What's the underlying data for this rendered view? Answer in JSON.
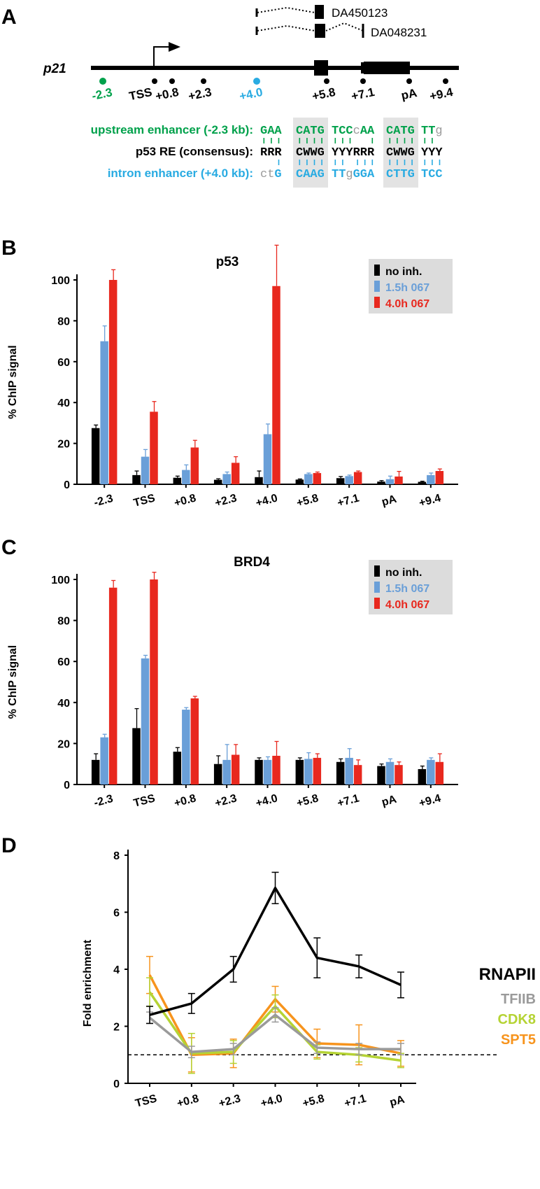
{
  "colors": {
    "black": "#000000",
    "blue": "#6a9fd8",
    "red": "#e8281e",
    "green": "#00a14b",
    "cyan": "#29abe2",
    "gray": "#9a9a9a",
    "lime": "#b5d334",
    "orange": "#f7941d",
    "legend_bg": "#dcdcdc",
    "motif_bg": "#e3e3e3"
  },
  "panel_a": {
    "letter": "A",
    "gene_name": "p21",
    "transcripts": [
      "DA450123",
      "DA048231"
    ],
    "tss_label": "TSS",
    "sites": [
      {
        "label": "-2.3",
        "color": "green"
      },
      {
        "label": "TSS",
        "color": "black"
      },
      {
        "label": "+0.8",
        "color": "black"
      },
      {
        "label": "+2.3",
        "color": "black"
      },
      {
        "label": "+4.0",
        "color": "cyan"
      },
      {
        "label": "+5.8",
        "color": "black"
      },
      {
        "label": "+7.1",
        "color": "black"
      },
      {
        "label": "pA",
        "color": "black"
      },
      {
        "label": "+9.4",
        "color": "black"
      }
    ],
    "motif_rows": [
      {
        "label": "upstream enhancer (-2.3 kb):",
        "color": "green",
        "groups": [
          [
            "GAA"
          ],
          [
            "CATG"
          ],
          [
            "TCC",
            "c",
            "AA"
          ],
          [
            "CATG"
          ],
          [
            "TT",
            "g"
          ]
        ]
      },
      {
        "label": "p53 RE (consensus):",
        "color": "black",
        "groups": [
          [
            "RRR"
          ],
          [
            "CWWG"
          ],
          [
            "YYYRRR"
          ],
          [
            "CWWG"
          ],
          [
            "YYY"
          ]
        ]
      },
      {
        "label": "intron enhancer (+4.0 kb):",
        "color": "cyan",
        "groups": [
          [
            "ct",
            "G"
          ],
          [
            "CAAG"
          ],
          [
            "TT",
            "g",
            "GGA"
          ],
          [
            "CTTG"
          ],
          [
            "TCC"
          ]
        ]
      }
    ]
  },
  "chart_data": [
    {
      "panel": "B",
      "type": "bar",
      "title": "p53",
      "ylabel": "% ChIP signal",
      "xlabel": "",
      "ylim": [
        0,
        100
      ],
      "yticks": [
        0,
        20,
        40,
        60,
        80,
        100
      ],
      "categories": [
        "-2.3",
        "TSS",
        "+0.8",
        "+2.3",
        "+4.0",
        "+5.8",
        "+7.1",
        "pA",
        "+9.4"
      ],
      "series": [
        {
          "name": "no inh.",
          "color": "black",
          "values": [
            27.5,
            4.5,
            3.2,
            2.2,
            3.5,
            2.3,
            3.0,
            1.3,
            1.2
          ],
          "errors": [
            1.5,
            2,
            0.8,
            0.5,
            3,
            0.3,
            0.8,
            0.5,
            0.3
          ]
        },
        {
          "name": "1.5h 067",
          "color": "blue",
          "values": [
            70,
            13.5,
            7,
            5,
            24.5,
            5,
            4,
            2.5,
            4.5
          ],
          "errors": [
            7.5,
            3.5,
            2.5,
            1,
            5,
            0.5,
            0.5,
            1.5,
            1
          ]
        },
        {
          "name": "4.0h 067",
          "color": "red",
          "values": [
            100,
            35.5,
            18,
            10.5,
            97,
            5.5,
            6,
            3.8,
            6.5
          ],
          "errors": [
            5,
            5,
            3.5,
            3,
            20,
            0.5,
            0.5,
            2.5,
            1
          ]
        }
      ],
      "legend": {
        "position": "top-right",
        "labels": [
          "no inh.",
          "1.5h 067",
          "4.0h 067"
        ]
      }
    },
    {
      "panel": "C",
      "type": "bar",
      "title": "BRD4",
      "ylabel": "% ChIP signal",
      "xlabel": "",
      "ylim": [
        0,
        100
      ],
      "yticks": [
        0,
        20,
        40,
        60,
        80,
        100
      ],
      "categories": [
        "-2.3",
        "TSS",
        "+0.8",
        "+2.3",
        "+4.0",
        "+5.8",
        "+7.1",
        "pA",
        "+9.4"
      ],
      "series": [
        {
          "name": "no inh.",
          "color": "black",
          "values": [
            12,
            27.5,
            16,
            10,
            12,
            12,
            11,
            9,
            7.5
          ],
          "errors": [
            3,
            9.5,
            2,
            4,
            1,
            1,
            1.5,
            1,
            1.5
          ]
        },
        {
          "name": "1.5h 067",
          "color": "blue",
          "values": [
            23,
            61.5,
            36.5,
            12,
            12,
            12.5,
            13,
            11,
            12
          ],
          "errors": [
            1.5,
            1.5,
            1,
            7.5,
            1.5,
            3,
            4.5,
            1.5,
            1
          ]
        },
        {
          "name": "4.0h 067",
          "color": "red",
          "values": [
            96,
            100,
            42,
            14.5,
            14,
            13,
            9.5,
            9.5,
            11
          ],
          "errors": [
            3.5,
            3.5,
            1,
            5,
            7,
            2,
            2.5,
            1.5,
            4
          ]
        }
      ],
      "legend": {
        "position": "top-right",
        "labels": [
          "no inh.",
          "1.5h 067",
          "4.0h 067"
        ]
      }
    },
    {
      "panel": "D",
      "type": "line",
      "title": "",
      "ylabel": "Fold enrichment",
      "xlabel": "",
      "ylim": [
        0,
        8
      ],
      "yticks": [
        0,
        2,
        4,
        6,
        8
      ],
      "categories": [
        "TSS",
        "+0.8",
        "+2.3",
        "+4.0",
        "+5.8",
        "+7.1",
        "pA"
      ],
      "reference_line": 1,
      "series": [
        {
          "name": "SPT5",
          "color": "orange",
          "values": [
            3.8,
            1.0,
            1.05,
            2.95,
            1.4,
            1.35,
            1.05
          ],
          "errors": [
            0.65,
            0.6,
            0.5,
            0.45,
            0.5,
            0.7,
            0.45
          ]
        },
        {
          "name": "CDK8",
          "color": "lime",
          "values": [
            3.2,
            1.05,
            1.1,
            2.7,
            1.1,
            1.0,
            0.8
          ],
          "errors": [
            0.5,
            0.7,
            0.4,
            0.4,
            0.25,
            0.25,
            0.25
          ]
        },
        {
          "name": "TFIIB",
          "color": "gray",
          "values": [
            2.3,
            1.1,
            1.2,
            2.4,
            1.25,
            1.2,
            1.2
          ],
          "errors": [
            0.2,
            0.2,
            0.2,
            0.25,
            0.2,
            0.2,
            0.2
          ]
        },
        {
          "name": "RNAPII",
          "color": "black",
          "values": [
            2.4,
            2.8,
            4.0,
            6.85,
            4.4,
            4.1,
            3.45
          ],
          "errors": [
            0.3,
            0.35,
            0.45,
            0.55,
            0.7,
            0.4,
            0.45
          ]
        }
      ],
      "legend": {
        "position": "right",
        "labels": [
          "RNAPII",
          "TFIIB",
          "CDK8",
          "SPT5"
        ]
      }
    }
  ]
}
